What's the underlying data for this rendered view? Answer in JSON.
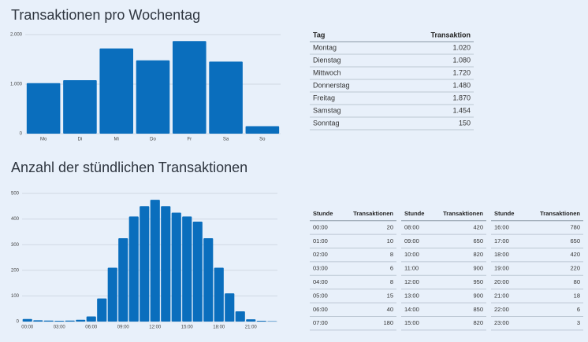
{
  "chart_data": [
    {
      "type": "bar",
      "title": "Transaktionen pro Wochentag",
      "categories": [
        "Mo",
        "Di",
        "Mi",
        "Do",
        "Fr",
        "Sa",
        "So"
      ],
      "values": [
        1020,
        1080,
        1720,
        1480,
        1870,
        1454,
        150
      ],
      "color": "#0a6ebd",
      "ylim": [
        0,
        2000
      ],
      "yticks": [
        0,
        {
          "value": 1000,
          "label": "1.000"
        },
        {
          "value": 2000,
          "label": "2.000"
        }
      ],
      "grid": true
    },
    {
      "type": "bar",
      "title": "Anzahl der stündlichen Transaktionen",
      "categories": [
        "00:00",
        null,
        null,
        "03:00",
        null,
        null,
        "06:00",
        null,
        null,
        "09:00",
        null,
        null,
        "12:00",
        null,
        null,
        "15:00",
        null,
        null,
        "18:00",
        null,
        null,
        "21:00",
        null,
        null
      ],
      "values": [
        10,
        5,
        4,
        3,
        4,
        7,
        20,
        90,
        210,
        325,
        410,
        450,
        475,
        450,
        425,
        410,
        390,
        325,
        210,
        110,
        40,
        9,
        3,
        1.5
      ],
      "color": "#0a6ebd",
      "ylim": [
        0,
        500
      ],
      "yticks": [
        0,
        100,
        200,
        300,
        400,
        500
      ],
      "grid": true
    }
  ],
  "tables": [
    {
      "header": [
        "Tag",
        "Transaktion"
      ],
      "rows": [
        [
          "Montag",
          "1.020"
        ],
        [
          "Dienstag",
          "1.080"
        ],
        [
          "Mittwoch",
          "1.720"
        ],
        [
          "Donnerstag",
          "1.480"
        ],
        [
          "Freitag",
          "1.870"
        ],
        [
          "Samstag",
          "1.454"
        ],
        [
          "Sonntag",
          "150"
        ]
      ]
    },
    {
      "header": [
        "Stunde",
        "Transaktionen"
      ],
      "rows": [
        [
          "00:00",
          "20"
        ],
        [
          "01:00",
          "10"
        ],
        [
          "02:00",
          "8"
        ],
        [
          "03:00",
          "6"
        ],
        [
          "04:00",
          "8"
        ],
        [
          "05:00",
          "15"
        ],
        [
          "06:00",
          "40"
        ],
        [
          "07:00",
          "180"
        ]
      ]
    },
    {
      "header": [
        "Stunde",
        "Transaktionen"
      ],
      "rows": [
        [
          "08:00",
          "420"
        ],
        [
          "09:00",
          "650"
        ],
        [
          "10:00",
          "820"
        ],
        [
          "11:00",
          "900"
        ],
        [
          "12:00",
          "950"
        ],
        [
          "13:00",
          "900"
        ],
        [
          "14:00",
          "850"
        ],
        [
          "15:00",
          "820"
        ]
      ]
    },
    {
      "header": [
        "Stunde",
        "Transaktionen"
      ],
      "rows": [
        [
          "16:00",
          "780"
        ],
        [
          "17:00",
          "650"
        ],
        [
          "18:00",
          "420"
        ],
        [
          "19:00",
          "220"
        ],
        [
          "20:00",
          "80"
        ],
        [
          "21:00",
          "18"
        ],
        [
          "22:00",
          "6"
        ],
        [
          "23:00",
          "3"
        ]
      ]
    }
  ]
}
